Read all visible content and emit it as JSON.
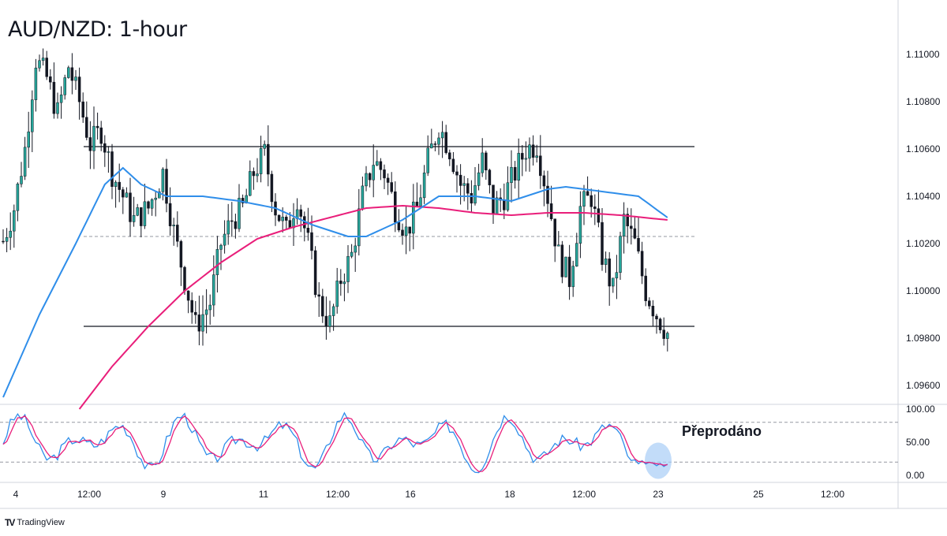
{
  "title": "AUD/NZD: 1-hour",
  "oscillator_label": "Přeprodáno",
  "brand": {
    "name": "TradingView",
    "icon": "tradingview-logo-icon"
  },
  "colors": {
    "bull": "#26a69a",
    "bear": "#131722",
    "ma_fast": "#2f8eea",
    "ma_slow": "#e91e7a",
    "stoch_k": "#2f8eea",
    "stoch_d": "#e91e7a",
    "highlight": "#a8cdf7",
    "level": "#131722"
  },
  "chart_data": {
    "type": "candlestick",
    "symbol": "AUD/NZD",
    "timeframe": "1-hour",
    "ylim": [
      1.0955,
      1.1115
    ],
    "y_ticks": [
      "1.11000",
      "1.10800",
      "1.10600",
      "1.10400",
      "1.10200",
      "1.10000",
      "1.09800",
      "1.09600"
    ],
    "x_ticks": [
      "4",
      "12:00",
      "9",
      "11",
      "12:00",
      "16",
      "18",
      "12:00",
      "23",
      "25",
      "12:00"
    ],
    "levels": [
      {
        "kind": "resistance",
        "value": 1.1061
      },
      {
        "kind": "midline",
        "value": 1.1023
      },
      {
        "kind": "support",
        "value": 1.0985
      }
    ],
    "price_path": [
      [
        0,
        1.1021
      ],
      [
        3,
        1.1035
      ],
      [
        6,
        1.106
      ],
      [
        9,
        1.1098
      ],
      [
        12,
        1.109
      ],
      [
        15,
        1.1075
      ],
      [
        18,
        1.1095
      ],
      [
        21,
        1.108
      ],
      [
        24,
        1.1062
      ],
      [
        27,
        1.1068
      ],
      [
        30,
        1.105
      ],
      [
        33,
        1.104
      ],
      [
        36,
        1.103
      ],
      [
        40,
        1.1035
      ],
      [
        44,
        1.105
      ],
      [
        47,
        1.1025
      ],
      [
        50,
        1.1005
      ],
      [
        53,
        1.0985
      ],
      [
        57,
        1.0995
      ],
      [
        60,
        1.102
      ],
      [
        63,
        1.103
      ],
      [
        66,
        1.1035
      ],
      [
        69,
        1.105
      ],
      [
        72,
        1.1058
      ],
      [
        75,
        1.1035
      ],
      [
        78,
        1.1025
      ],
      [
        81,
        1.104
      ],
      [
        84,
        1.102
      ],
      [
        87,
        1.0995
      ],
      [
        90,
        1.0986
      ],
      [
        93,
        1.1005
      ],
      [
        96,
        1.1015
      ],
      [
        99,
        1.104
      ],
      [
        102,
        1.1055
      ],
      [
        105,
        1.105
      ],
      [
        108,
        1.1035
      ],
      [
        111,
        1.1025
      ],
      [
        114,
        1.1035
      ],
      [
        117,
        1.1055
      ],
      [
        120,
        1.107
      ],
      [
        123,
        1.106
      ],
      [
        126,
        1.1045
      ],
      [
        129,
        1.104
      ],
      [
        132,
        1.1055
      ],
      [
        135,
        1.1035
      ],
      [
        138,
        1.104
      ],
      [
        141,
        1.105
      ],
      [
        144,
        1.106
      ],
      [
        147,
        1.1062
      ],
      [
        150,
        1.104
      ],
      [
        153,
        1.1015
      ],
      [
        156,
        1.1005
      ],
      [
        159,
        1.1035
      ],
      [
        162,
        1.104
      ],
      [
        165,
        1.1015
      ],
      [
        168,
        1.1
      ],
      [
        171,
        1.103
      ],
      [
        174,
        1.102
      ],
      [
        177,
        1.1
      ],
      [
        180,
        1.099
      ],
      [
        183,
        1.0982
      ]
    ],
    "ma_fast_path": [
      [
        0,
        1.0955
      ],
      [
        10,
        1.099
      ],
      [
        20,
        1.102
      ],
      [
        28,
        1.1045
      ],
      [
        33,
        1.1052
      ],
      [
        38,
        1.1045
      ],
      [
        45,
        1.104
      ],
      [
        55,
        1.104
      ],
      [
        65,
        1.1038
      ],
      [
        75,
        1.1035
      ],
      [
        85,
        1.1028
      ],
      [
        95,
        1.1023
      ],
      [
        100,
        1.1023
      ],
      [
        110,
        1.103
      ],
      [
        120,
        1.104
      ],
      [
        130,
        1.104
      ],
      [
        140,
        1.1038
      ],
      [
        150,
        1.1043
      ],
      [
        155,
        1.1044
      ],
      [
        165,
        1.1042
      ],
      [
        175,
        1.104
      ],
      [
        183,
        1.1031
      ]
    ],
    "ma_slow_path": [
      [
        21,
        1.095
      ],
      [
        30,
        1.0968
      ],
      [
        40,
        1.0985
      ],
      [
        50,
        1.1
      ],
      [
        60,
        1.1012
      ],
      [
        70,
        1.1022
      ],
      [
        80,
        1.1027
      ],
      [
        90,
        1.1031
      ],
      [
        100,
        1.1035
      ],
      [
        110,
        1.1036
      ],
      [
        120,
        1.1035
      ],
      [
        130,
        1.1033
      ],
      [
        140,
        1.1032
      ],
      [
        150,
        1.1033
      ],
      [
        160,
        1.1033
      ],
      [
        170,
        1.1032
      ],
      [
        183,
        1.103
      ]
    ],
    "oscillator": {
      "type": "stochastic",
      "ylim": [
        0,
        100
      ],
      "y_ticks": [
        "100.00",
        "50.00",
        "0.00"
      ],
      "levels": [
        80,
        20
      ],
      "highlight": {
        "label": "Přeprodáno",
        "x_center": 180,
        "value": 22
      }
    }
  }
}
